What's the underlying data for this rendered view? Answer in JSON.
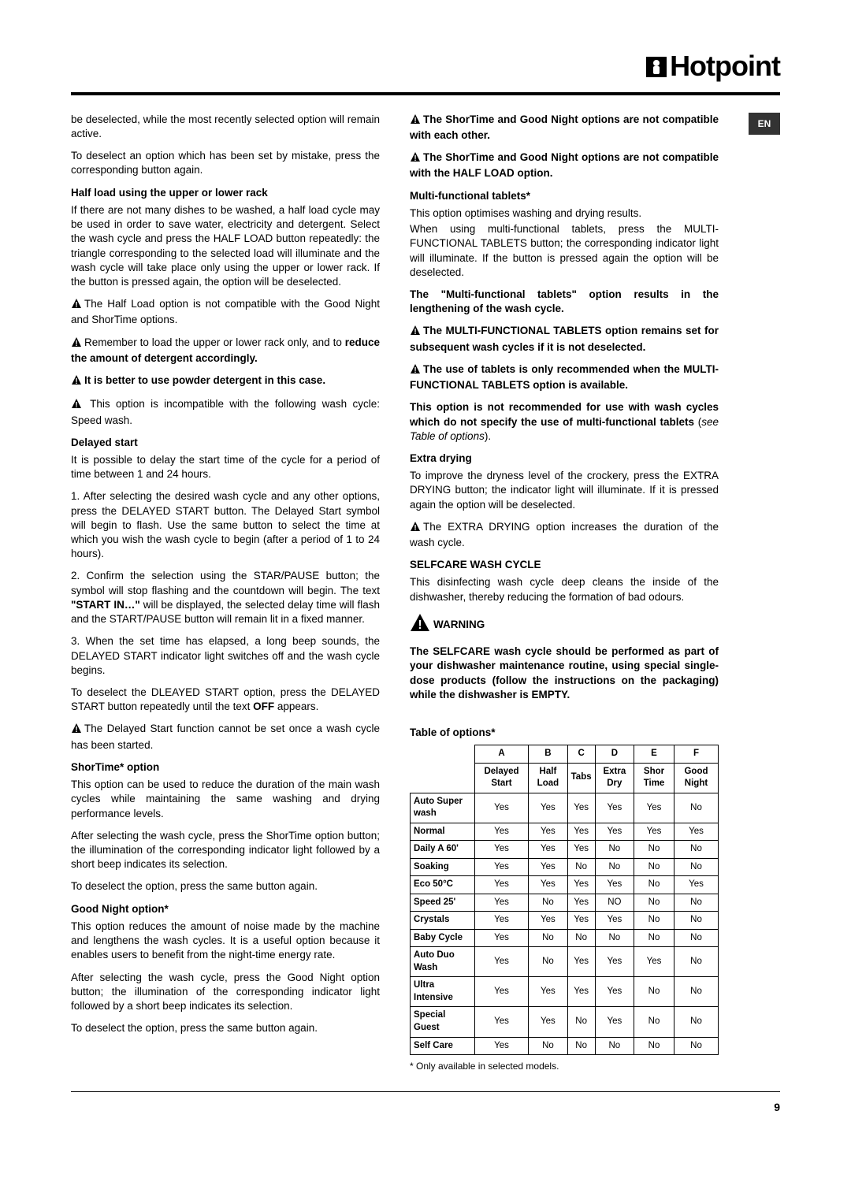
{
  "brand": "Hotpoint",
  "lang_badge": "EN",
  "page_number": "9",
  "footnote": "* Only available in selected models.",
  "left": {
    "p1": "be deselected, while the most recently selected option will remain active.",
    "p2": "To deselect an option which has been set by mistake, press the corresponding button again.",
    "h_half": "Half load using the upper or lower rack",
    "p3": "If there are not many dishes to be washed, a half load cycle may be used in order to save water, electricity and detergent. Select the wash cycle and press the HALF LOAD button repeatedly: the triangle corresponding to the selected load will illuminate and the wash cycle will take place only using the upper or lower rack. If the button is pressed again, the option will be deselected.",
    "p4": "The Half Load option is not compatible with the Good Night and ShorTime options.",
    "p5a": "Remember to load the upper or lower rack only, and to ",
    "p5b": "reduce the amount of detergent accordingly.",
    "p6": "It is better to use powder detergent in this case.",
    "p7": "This option is incompatible with the following wash cycle: Speed wash.",
    "h_delayed": "Delayed start",
    "p8": "It is possible to delay the start time of the cycle for a period of time between 1 and 24 hours.",
    "p9a": "1. After selecting the desired wash cycle and any other options, press the DELAYED START button. The Delayed Start symbol will begin to flash. Use the same button to select the time at which you wish the wash cycle to begin (after a period of 1 to 24 hours).",
    "p9b1": "2. Confirm the selection using the STAR/PAUSE button; the symbol will stop flashing and the countdown will begin. The text ",
    "p9b_bold": "\"START IN…\"",
    "p9b2": " will be displayed, the selected delay time will flash and the START/PAUSE button will remain lit in a fixed manner.",
    "p9c": "3. When the set time has elapsed, a long beep sounds, the DELAYED START indicator light switches off and the wash cycle begins.",
    "p10a": "To deselect the DLEAYED START option, press the DELAYED START button repeatedly until the text ",
    "p10b": "OFF",
    "p10c": " appears.",
    "p11": "The Delayed Start function cannot be set once a wash cycle has been started.",
    "h_shor": "ShorTime* option",
    "p12": "This option can be used to reduce the duration of the main wash cycles while maintaining the same washing and drying performance levels.",
    "p13": "After selecting the wash cycle, press the ShorTime option button; the illumination of the corresponding indicator light followed by a short beep indicates its selection.",
    "p14": "To deselect the option, press the same button again.",
    "h_good": "Good Night option*",
    "p15": "This option reduces the amount of noise made by the machine and lengthens the wash cycles. It is a useful option because it enables users to benefit from the night-time energy rate.",
    "p16": "After selecting the wash cycle, press the Good Night option button; the illumination of the corresponding indicator light followed by a short beep indicates its selection.",
    "p17": "To deselect the option, press the same button again."
  },
  "right": {
    "w1": "The ShorTime and Good Night options are not compatible with each other.",
    "w2": "The ShorTime and Good Night options are not compatible with the HALF LOAD option.",
    "h_multi": "Multi-functional tablets*",
    "p1": "This option optimises washing and drying results.",
    "p2": "When using multi-functional tablets, press the MULTI-FUNCTIONAL TABLETS button; the corresponding indicator light will illuminate. If the button is pressed again the option will be deselected.",
    "p3": "The \"Multi-functional tablets\" option results in the lengthening of the wash cycle.",
    "w3": "The MULTI-FUNCTIONAL TABLETS option remains set for subsequent wash cycles if it is not deselected.",
    "w4": "The use of tablets is only recommended when the MULTI-FUNCTIONAL TABLETS option is available.",
    "p4a": "This option is not recommended for use with wash cycles which do not specify the use of multi-functional tablets",
    "p4b": " (",
    "p4c": "see Table of options",
    "p4d": ").",
    "h_extra": "Extra drying",
    "p5": "To improve the dryness level of the crockery, press the EXTRA DRYING button; the indicator light will illuminate. If it is pressed again the option will be deselected.",
    "p6": "The EXTRA DRYING option increases the duration of the wash cycle.",
    "h_self": "SELFCARE WASH CYCLE",
    "p7": "This disinfecting wash cycle deep cleans the inside of the dishwasher, thereby reducing the formation of bad odours.",
    "warn_title": "WARNING",
    "warn_body": "The SELFCARE wash cycle should be performed as part of your dishwasher maintenance routine, using special single-dose products (follow the instructions on the packaging) while the dishwasher is EMPTY.",
    "h_table": "Table of options*",
    "table": {
      "header1": [
        "",
        "A",
        "B",
        "C",
        "D",
        "E",
        "F"
      ],
      "header2": [
        "",
        "Delayed Start",
        "Half Load",
        "Tabs",
        "Extra Dry",
        "Shor Time",
        "Good Night"
      ],
      "rows": [
        [
          "Auto Super wash",
          "Yes",
          "Yes",
          "Yes",
          "Yes",
          "Yes",
          "No"
        ],
        [
          "Normal",
          "Yes",
          "Yes",
          "Yes",
          "Yes",
          "Yes",
          "Yes"
        ],
        [
          "Daily A 60'",
          "Yes",
          "Yes",
          "Yes",
          "No",
          "No",
          "No"
        ],
        [
          "Soaking",
          "Yes",
          "Yes",
          "No",
          "No",
          "No",
          "No"
        ],
        [
          "Eco 50°C",
          "Yes",
          "Yes",
          "Yes",
          "Yes",
          "No",
          "Yes"
        ],
        [
          "Speed 25'",
          "Yes",
          "No",
          "Yes",
          "NO",
          "No",
          "No"
        ],
        [
          "Crystals",
          "Yes",
          "Yes",
          "Yes",
          "Yes",
          "No",
          "No"
        ],
        [
          "Baby Cycle",
          "Yes",
          "No",
          "No",
          "No",
          "No",
          "No"
        ],
        [
          "Auto Duo Wash",
          "Yes",
          "No",
          "Yes",
          "Yes",
          "Yes",
          "No"
        ],
        [
          "Ultra Intensive",
          "Yes",
          "Yes",
          "Yes",
          "Yes",
          "No",
          "No"
        ],
        [
          "Special Guest",
          "Yes",
          "Yes",
          "No",
          "Yes",
          "No",
          "No"
        ],
        [
          "Self Care",
          "Yes",
          "No",
          "No",
          "No",
          "No",
          "No"
        ]
      ]
    }
  }
}
